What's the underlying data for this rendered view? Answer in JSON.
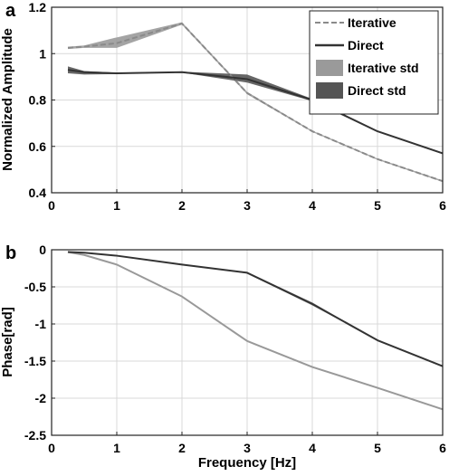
{
  "chart_data": [
    {
      "type": "line",
      "panel_label": "a",
      "xlabel": "",
      "ylabel": "Normalized Amplitude",
      "xlim": [
        0,
        6
      ],
      "ylim": [
        0.4,
        1.2
      ],
      "x_ticks": [
        "0",
        "1",
        "2",
        "3",
        "4",
        "5",
        "6"
      ],
      "y_ticks": [
        "0.4",
        "0.6",
        "0.8",
        "1",
        "1.2"
      ],
      "grid": true,
      "legend_position": "top-right",
      "x": [
        0.25,
        0.5,
        1,
        2,
        3,
        4,
        5,
        6
      ],
      "series": [
        {
          "name": "Iterative",
          "style": "dashed",
          "color": "#8a8a8a",
          "values": [
            1.025,
            1.03,
            1.045,
            1.13,
            0.83,
            0.665,
            0.545,
            0.45
          ]
        },
        {
          "name": "Direct",
          "style": "solid",
          "color": "#333333",
          "values": [
            0.93,
            0.92,
            0.915,
            0.92,
            0.89,
            0.8,
            0.665,
            0.57
          ]
        },
        {
          "name": "Iterative std",
          "style": "band",
          "color": "#9a9a9a",
          "upper": [
            1.03,
            1.035,
            1.07,
            1.135,
            0.835,
            0.668,
            0.548,
            0.453
          ],
          "lower": [
            1.02,
            1.025,
            1.025,
            1.125,
            0.825,
            0.662,
            0.542,
            0.447
          ]
        },
        {
          "name": "Direct std",
          "style": "band",
          "color": "#555555",
          "upper": [
            0.945,
            0.925,
            0.918,
            0.922,
            0.91,
            0.805,
            0.668,
            0.573
          ],
          "lower": [
            0.915,
            0.91,
            0.912,
            0.918,
            0.875,
            0.795,
            0.662,
            0.567
          ]
        }
      ]
    },
    {
      "type": "line",
      "panel_label": "b",
      "xlabel": "Frequency [Hz]",
      "ylabel": "Phase[rad]",
      "xlim": [
        0,
        6
      ],
      "ylim": [
        -2.5,
        0
      ],
      "x_ticks": [
        "0",
        "1",
        "2",
        "3",
        "4",
        "5",
        "6"
      ],
      "y_ticks": [
        "0",
        "-0.5",
        "-1",
        "-1.5",
        "-2",
        "-2.5"
      ],
      "grid": true,
      "x": [
        0.25,
        0.5,
        1,
        2,
        3,
        4,
        5,
        6
      ],
      "series": [
        {
          "name": "",
          "style": "solid",
          "color": "#999999",
          "values": [
            -0.03,
            -0.07,
            -0.2,
            -0.63,
            -1.23,
            -1.58,
            -1.86,
            -2.15
          ]
        },
        {
          "name": "",
          "style": "solid",
          "color": "#333333",
          "values": [
            -0.03,
            -0.04,
            -0.08,
            -0.2,
            -0.31,
            -0.73,
            -1.22,
            -1.57
          ],
          "band_upper": [
            -0.03,
            -0.04,
            -0.08,
            -0.2,
            -0.3,
            -0.71,
            -1.22,
            -1.57
          ],
          "band_lower": [
            -0.03,
            -0.04,
            -0.08,
            -0.2,
            -0.32,
            -0.75,
            -1.22,
            -1.57
          ]
        }
      ]
    }
  ]
}
